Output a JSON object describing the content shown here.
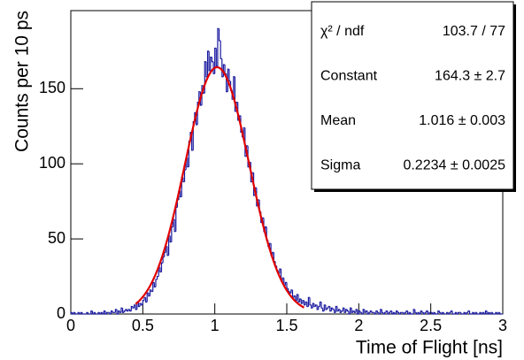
{
  "chart_data": {
    "type": "histogram",
    "x_label": "Time of Flight [ns]",
    "y_label": "Counts per 10 ps",
    "color": "#1a1aa0",
    "fit_color": "#e00000",
    "xlim": [
      0,
      3
    ],
    "ylim": [
      0,
      202
    ],
    "xticks": [
      0,
      0.5,
      1,
      1.5,
      2,
      2.5,
      3
    ],
    "yticks": [
      0,
      50,
      100,
      150
    ],
    "fit_range": [
      0.45,
      1.62
    ],
    "stats": [
      {
        "name": "χ² / ndf",
        "label": "103.7 / 77"
      },
      {
        "name": "Constant",
        "value": 164.3,
        "label": "164.3 ± 2.7"
      },
      {
        "name": "Mean",
        "value": 1.016,
        "label": "1.016 ± 0.003"
      },
      {
        "name": "Sigma",
        "value": 0.2234,
        "label": "0.2234 ± 0.0025"
      }
    ],
    "bins": [
      0,
      0.01,
      0.02,
      0.03,
      0.04,
      0.05,
      0.06,
      0.07,
      0.08,
      0.09,
      0.1,
      0.11,
      0.12,
      0.13,
      0.14,
      0.15,
      0.16,
      0.17,
      0.18,
      0.19,
      0.2,
      0.21,
      0.22,
      0.23,
      0.24,
      0.25,
      0.26,
      0.27,
      0.28,
      0.29,
      0.3,
      0.31,
      0.32,
      0.33,
      0.34,
      0.35,
      0.36,
      0.37,
      0.38,
      0.39,
      0.4,
      0.41,
      0.42,
      0.43,
      0.44,
      0.45,
      0.46,
      0.47,
      0.48,
      0.49,
      0.5,
      0.51,
      0.52,
      0.53,
      0.54,
      0.55,
      0.56,
      0.57,
      0.58,
      0.59,
      0.6,
      0.61,
      0.62,
      0.63,
      0.64,
      0.65,
      0.66,
      0.67,
      0.68,
      0.69,
      0.7,
      0.71,
      0.72,
      0.73,
      0.74,
      0.75,
      0.76,
      0.77,
      0.78,
      0.79,
      0.8,
      0.81,
      0.82,
      0.83,
      0.84,
      0.85,
      0.86,
      0.87,
      0.88,
      0.89,
      0.9,
      0.91,
      0.92,
      0.93,
      0.94,
      0.95,
      0.96,
      0.97,
      0.98,
      0.99,
      1,
      1.01,
      1.02,
      1.03,
      1.04,
      1.05,
      1.06,
      1.07,
      1.08,
      1.09,
      1.1,
      1.11,
      1.12,
      1.13,
      1.14,
      1.15,
      1.16,
      1.17,
      1.18,
      1.19,
      1.2,
      1.21,
      1.22,
      1.23,
      1.24,
      1.25,
      1.26,
      1.27,
      1.28,
      1.29,
      1.3,
      1.31,
      1.32,
      1.33,
      1.34,
      1.35,
      1.36,
      1.37,
      1.38,
      1.39,
      1.4,
      1.41,
      1.42,
      1.43,
      1.44,
      1.45,
      1.46,
      1.47,
      1.48,
      1.49,
      1.5,
      1.51,
      1.52,
      1.53,
      1.54,
      1.55,
      1.56,
      1.57,
      1.58,
      1.59,
      1.6,
      1.61,
      1.62,
      1.63,
      1.64,
      1.65,
      1.66,
      1.67,
      1.68,
      1.69,
      1.7,
      1.71,
      1.72,
      1.73,
      1.74,
      1.75,
      1.76,
      1.77,
      1.78,
      1.79,
      1.8,
      1.81,
      1.82,
      1.83,
      1.84,
      1.85,
      1.86,
      1.87,
      1.88,
      1.89,
      1.9,
      1.91,
      1.92,
      1.93,
      1.94,
      1.95,
      1.96,
      1.97,
      1.98,
      1.99,
      2,
      2.01,
      2.02,
      2.03,
      2.04,
      2.05,
      2.06,
      2.07,
      2.08,
      2.09,
      2.1,
      2.11,
      2.12,
      2.13,
      2.14,
      2.15,
      2.16,
      2.17,
      2.18,
      2.19,
      2.2,
      2.21,
      2.22,
      2.23,
      2.24,
      2.25,
      2.26,
      2.27,
      2.28,
      2.29,
      2.3,
      2.31,
      2.32,
      2.33,
      2.34,
      2.35,
      2.36,
      2.37,
      2.38,
      2.39,
      2.4,
      2.41,
      2.42,
      2.43,
      2.44,
      2.45,
      2.46,
      2.47,
      2.48,
      2.49,
      2.5,
      2.51,
      2.52,
      2.53,
      2.54,
      2.55,
      2.56,
      2.57,
      2.58,
      2.59,
      2.6,
      2.61,
      2.62,
      2.63,
      2.64,
      2.65,
      2.66,
      2.67,
      2.68,
      2.69,
      2.7,
      2.71,
      2.72,
      2.73,
      2.74,
      2.75,
      2.76,
      2.77,
      2.78,
      2.79,
      2.8,
      2.81,
      2.82,
      2.83,
      2.84,
      2.85,
      2.86,
      2.87,
      2.88,
      2.89,
      2.9,
      2.91,
      2.92,
      2.93,
      2.94,
      2.95,
      2.96,
      2.97,
      2.98,
      2.99,
      3
    ],
    "values": [
      1,
      0,
      1,
      0,
      0,
      1,
      0,
      1,
      0,
      0,
      0,
      1,
      0,
      0,
      2,
      0,
      1,
      0,
      0,
      1,
      0,
      1,
      0,
      2,
      0,
      1,
      1,
      0,
      2,
      1,
      1,
      3,
      0,
      2,
      1,
      4,
      1,
      2,
      3,
      2,
      3,
      2,
      5,
      4,
      6,
      3,
      8,
      5,
      7,
      6,
      9,
      11,
      8,
      14,
      12,
      16,
      15,
      21,
      18,
      23,
      25,
      31,
      28,
      34,
      38,
      41,
      45,
      39,
      52,
      48,
      58,
      63,
      55,
      71,
      76,
      82,
      78,
      91,
      88,
      96,
      104,
      98,
      115,
      121,
      109,
      128,
      134,
      126,
      141,
      148,
      139,
      152,
      147,
      168,
      158,
      175,
      162,
      171,
      168,
      160,
      177,
      165,
      190,
      182,
      170,
      158,
      166,
      160,
      148,
      163,
      155,
      149,
      143,
      158,
      135,
      141,
      129,
      132,
      121,
      118,
      124,
      105,
      112,
      98,
      101,
      88,
      94,
      79,
      84,
      72,
      76,
      68,
      61,
      64,
      55,
      58,
      49,
      45,
      47,
      39,
      41,
      35,
      32,
      29,
      27,
      30,
      22,
      24,
      19,
      21,
      17,
      15,
      14,
      16,
      11,
      12,
      9,
      13,
      8,
      10,
      7,
      9,
      6,
      8,
      5,
      11,
      6,
      4,
      7,
      5,
      6,
      3,
      5,
      8,
      4,
      2,
      6,
      3,
      4,
      5,
      2,
      4,
      3,
      1,
      5,
      2,
      3,
      1,
      2,
      4,
      1,
      3,
      2,
      0,
      4,
      1,
      2,
      1,
      3,
      0,
      2,
      1,
      0,
      3,
      1,
      2,
      0,
      1,
      2,
      1,
      1,
      0,
      2,
      1,
      0,
      3,
      1,
      0,
      1,
      2,
      0,
      1,
      2,
      0,
      1,
      0,
      2,
      1,
      0,
      1,
      1,
      0,
      1,
      2,
      0,
      1,
      0,
      0,
      3,
      1,
      0,
      1,
      0,
      2,
      1,
      0,
      1,
      2,
      0,
      1,
      1,
      0,
      1,
      0,
      0,
      2,
      1,
      0,
      1,
      0,
      0,
      1,
      0,
      1,
      2,
      0,
      0,
      1,
      0,
      1,
      1,
      0,
      0,
      1,
      0,
      1,
      2,
      0,
      0,
      1,
      0,
      1,
      0,
      0,
      1,
      0,
      1,
      0,
      2,
      0,
      1,
      0,
      1,
      0,
      0,
      1,
      0,
      1,
      0,
      0
    ]
  }
}
